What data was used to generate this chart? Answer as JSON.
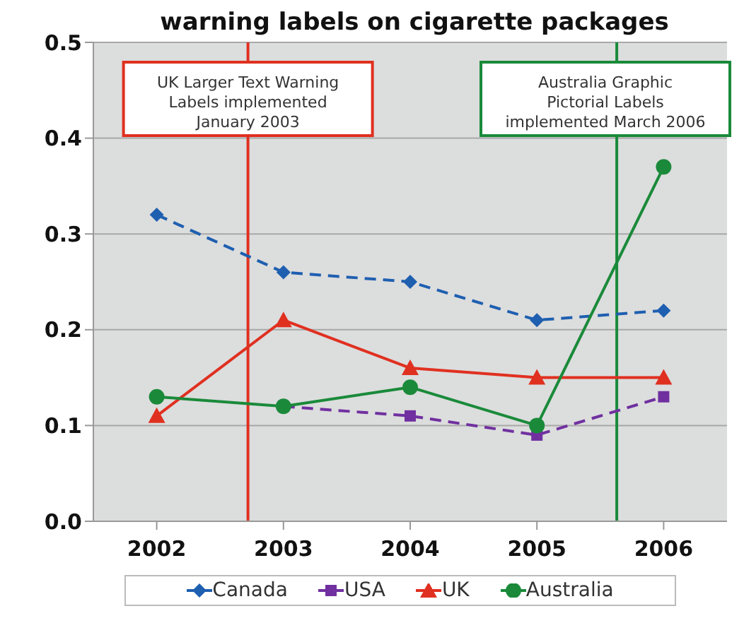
{
  "chart_data": {
    "type": "line",
    "title": "warning labels on cigarette packages",
    "x": [
      2002,
      2003,
      2004,
      2005,
      2006
    ],
    "xlim": [
      2001.5,
      2006.5
    ],
    "xticks": [
      2002,
      2003,
      2004,
      2005,
      2006
    ],
    "ylim": [
      0,
      0.5
    ],
    "yticks": [
      {
        "value": 0,
        "label": "0.0"
      },
      {
        "value": 0.1,
        "label": "0.1"
      },
      {
        "value": 0.2,
        "label": "0.2"
      },
      {
        "value": 0.3,
        "label": "0.3"
      },
      {
        "value": 0.4,
        "label": "0.4"
      },
      {
        "value": 0.5,
        "label": "0.5"
      }
    ],
    "grid": "y",
    "legend": "bottom",
    "series": [
      {
        "name": "Canada",
        "color": "#1f5fb0",
        "values": [
          0.32,
          0.26,
          0.25,
          0.21,
          0.22
        ],
        "marker": "diamond",
        "line_style": "dashed"
      },
      {
        "name": "USA",
        "color": "#7030a0",
        "values": [
          null,
          0.12,
          0.11,
          0.09,
          0.13
        ],
        "marker": "square",
        "line_style": "dashed"
      },
      {
        "name": "UK",
        "color": "#e03020",
        "values": [
          0.11,
          0.21,
          0.16,
          0.15,
          0.15
        ],
        "marker": "triangle",
        "line_style": "solid"
      },
      {
        "name": "Australia",
        "color": "#1a8a3a",
        "values": [
          0.13,
          0.12,
          0.14,
          0.1,
          0.37
        ],
        "marker": "circle",
        "line_style": "solid"
      }
    ],
    "ref_lines": [
      {
        "axis": "x",
        "value": 2002.72,
        "label": "UK Larger Text Warning\nLabels implemented\nJanuary 2003",
        "color": "#e03020"
      },
      {
        "axis": "x",
        "value": 2005.63,
        "label": "Australia Graphic\nPictorial Labels\nimplemented March 2006",
        "color": "#1a8a3a"
      }
    ]
  }
}
